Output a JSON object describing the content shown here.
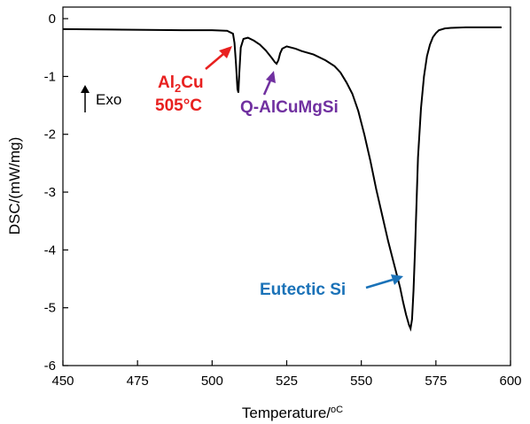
{
  "chart_data": {
    "type": "line",
    "title": "",
    "xlabel": "Temperature/",
    "xlabel_unit": "oC",
    "ylabel": "DSC/(mW/mg)",
    "xlim": [
      450,
      600
    ],
    "ylim": [
      -6,
      0.2
    ],
    "xticks": [
      450,
      475,
      500,
      525,
      550,
      575,
      600
    ],
    "yticks": [
      0,
      -1,
      -2,
      -3,
      -4,
      -5,
      -6
    ],
    "grid": false,
    "exo_indicator": "Exo",
    "series": [
      {
        "color": "#000000",
        "x": [
          450,
          470,
          490,
          500,
          505,
          507,
          507.5,
          508,
          508.5,
          508.8,
          509.1,
          509.6,
          510.5,
          512,
          514,
          516,
          518,
          520,
          521,
          521.6,
          522.2,
          522.8,
          523.5,
          525,
          528,
          530,
          534,
          538,
          541,
          543,
          545,
          547,
          549,
          551,
          553,
          555,
          557,
          559,
          561,
          563,
          564,
          565,
          566,
          566.5,
          567,
          567.5,
          568,
          568.5,
          569,
          570,
          571,
          572,
          573,
          574,
          575,
          576,
          578,
          580,
          585,
          590,
          597
        ],
        "y": [
          -0.18,
          -0.19,
          -0.2,
          -0.2,
          -0.21,
          -0.26,
          -0.42,
          -0.78,
          -1.22,
          -1.28,
          -0.95,
          -0.5,
          -0.35,
          -0.33,
          -0.38,
          -0.45,
          -0.55,
          -0.68,
          -0.75,
          -0.78,
          -0.72,
          -0.6,
          -0.52,
          -0.48,
          -0.52,
          -0.56,
          -0.62,
          -0.72,
          -0.82,
          -0.93,
          -1.1,
          -1.3,
          -1.6,
          -2.0,
          -2.45,
          -2.95,
          -3.4,
          -3.85,
          -4.25,
          -4.65,
          -4.9,
          -5.12,
          -5.3,
          -5.36,
          -5.2,
          -4.7,
          -4.0,
          -3.2,
          -2.4,
          -1.55,
          -1.0,
          -0.65,
          -0.45,
          -0.32,
          -0.25,
          -0.2,
          -0.17,
          -0.16,
          -0.15,
          -0.15,
          -0.15
        ]
      }
    ],
    "annotations": [
      {
        "text_main": "Al",
        "text_sub": "2",
        "text_rest": "Cu",
        "text_line2": "505°C",
        "color": "#e8201f",
        "target": [
          507.3,
          -0.3
        ]
      },
      {
        "text": "Q-AlCuMgSi",
        "color": "#7030a0",
        "target": [
          521.6,
          -0.74
        ]
      },
      {
        "text": "Eutectic Si",
        "color": "#1a72b8",
        "target": [
          563.5,
          -4.38
        ]
      }
    ]
  }
}
